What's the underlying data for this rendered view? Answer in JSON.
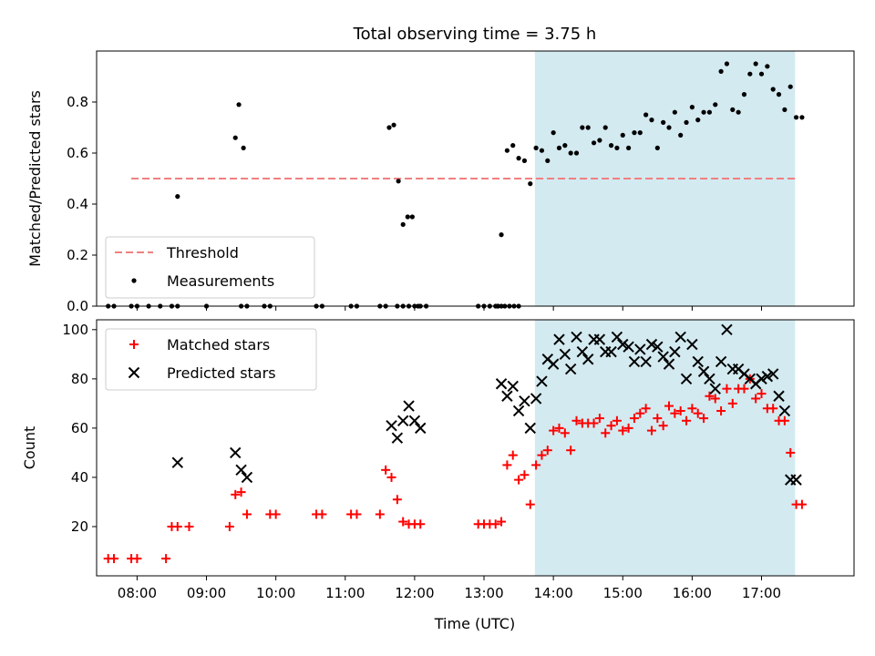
{
  "chart_data": {
    "title": "Total observing time = 3.75 h",
    "xlabel": "Time (UTC)",
    "x_ticks": [
      "08:00",
      "09:00",
      "10:00",
      "11:00",
      "12:00",
      "13:00",
      "14:00",
      "15:00",
      "16:00",
      "17:00"
    ],
    "xlim": [
      "07:25",
      "18:20"
    ],
    "shaded_interval": {
      "start": "13:44",
      "end": "17:29",
      "color": "#d3eaf0"
    },
    "panels": [
      {
        "id": "top",
        "ylabel": "Matched/Predicted stars",
        "ylim": [
          0.0,
          1.0
        ],
        "y_ticks": [
          "0.0",
          "0.2",
          "0.4",
          "0.6",
          "0.8"
        ],
        "grid": false,
        "legend": {
          "placement": "lower-left",
          "entries": [
            "Threshold",
            "Measurements"
          ]
        },
        "series": [
          {
            "name": "Threshold",
            "type": "line",
            "style": "dashed",
            "color": "#f08080",
            "x": [
              "07:55",
              "17:30"
            ],
            "y": [
              0.5,
              0.5
            ]
          },
          {
            "name": "Measurements",
            "type": "scatter",
            "marker": "dot",
            "color": "#000000",
            "x": [
              "07:35",
              "07:40",
              "07:55",
              "08:00",
              "08:10",
              "08:20",
              "08:30",
              "08:35",
              "09:00",
              "09:30",
              "09:35",
              "09:50",
              "09:55",
              "10:35",
              "10:40",
              "11:05",
              "11:10",
              "11:30",
              "11:35",
              "11:45",
              "11:50",
              "11:55",
              "12:00",
              "12:05",
              "12:10",
              "12:55",
              "13:00",
              "13:05",
              "13:10",
              "13:12",
              "13:15",
              "13:20",
              "13:25",
              "13:30",
              "13:35",
              "13:40",
              "13:45",
              "13:50",
              "13:55",
              "14:00",
              "14:05",
              "14:10",
              "14:15",
              "14:20",
              "14:25",
              "14:30",
              "14:35",
              "14:40",
              "14:45",
              "14:50",
              "14:55",
              "15:00",
              "15:05",
              "15:10",
              "15:15",
              "15:20",
              "15:25",
              "15:30",
              "15:35",
              "15:40",
              "15:45",
              "15:50",
              "15:55",
              "16:00",
              "16:05",
              "16:10",
              "16:15",
              "16:20",
              "16:25",
              "16:30",
              "16:35",
              "16:40",
              "16:45",
              "16:50",
              "16:55",
              "17:00",
              "17:05",
              "17:10",
              "17:15",
              "17:20",
              "17:25",
              "17:30",
              "17:35",
              "08:35",
              "09:25",
              "09:28",
              "09:32",
              "11:38",
              "11:42",
              "11:46",
              "11:50",
              "11:54",
              "11:58",
              "12:03",
              "13:12",
              "13:15",
              "13:18",
              "13:22",
              "13:26",
              "13:30"
            ],
            "y": [
              0,
              0,
              0,
              0,
              0,
              0,
              0,
              0,
              0,
              0,
              0,
              0,
              0,
              0,
              0,
              0,
              0,
              0,
              0,
              0,
              0,
              0,
              0,
              0,
              0,
              0,
              0,
              0,
              0,
              0,
              0.28,
              0.61,
              0.63,
              0.58,
              0.57,
              0.48,
              0.62,
              0.61,
              0.57,
              0.68,
              0.62,
              0.63,
              0.6,
              0.6,
              0.7,
              0.7,
              0.64,
              0.65,
              0.7,
              0.63,
              0.62,
              0.67,
              0.62,
              0.68,
              0.68,
              0.75,
              0.73,
              0.62,
              0.72,
              0.7,
              0.76,
              0.67,
              0.72,
              0.78,
              0.73,
              0.76,
              0.76,
              0.79,
              0.92,
              0.95,
              0.77,
              0.76,
              0.83,
              0.91,
              0.95,
              0.91,
              0.94,
              0.85,
              0.83,
              0.77,
              0.86,
              0.74,
              0.74,
              0.43,
              0.66,
              0.79,
              0.62,
              0.7,
              0.71,
              0.49,
              0.32,
              0.35,
              0.35,
              0.0,
              0.0,
              0.0,
              0.0,
              0.0,
              0.0,
              0.0
            ]
          }
        ]
      },
      {
        "id": "bottom",
        "ylabel": "Count",
        "ylim": [
          0,
          104
        ],
        "y_ticks": [
          "20",
          "40",
          "60",
          "80",
          "100"
        ],
        "grid": false,
        "legend": {
          "placement": "upper-left",
          "entries": [
            "Matched stars",
            "Predicted stars"
          ]
        },
        "series": [
          {
            "name": "Matched stars",
            "type": "scatter",
            "marker": "plus",
            "color": "#ff0000",
            "x": [
              "07:35",
              "07:40",
              "07:55",
              "08:00",
              "08:25",
              "08:30",
              "08:35",
              "08:45",
              "09:20",
              "09:25",
              "09:30",
              "09:35",
              "09:55",
              "10:00",
              "10:35",
              "10:40",
              "11:05",
              "11:10",
              "11:30",
              "11:35",
              "11:40",
              "11:45",
              "11:50",
              "11:55",
              "12:00",
              "12:05",
              "12:55",
              "13:00",
              "13:05",
              "13:10",
              "13:15",
              "13:20",
              "13:25",
              "13:30",
              "13:35",
              "13:40",
              "13:45",
              "13:50",
              "13:55",
              "14:00",
              "14:05",
              "14:10",
              "14:15",
              "14:20",
              "14:25",
              "14:30",
              "14:35",
              "14:40",
              "14:45",
              "14:50",
              "14:55",
              "15:00",
              "15:05",
              "15:10",
              "15:15",
              "15:20",
              "15:25",
              "15:30",
              "15:35",
              "15:40",
              "15:45",
              "15:50",
              "15:55",
              "16:00",
              "16:05",
              "16:10",
              "16:15",
              "16:20",
              "16:25",
              "16:30",
              "16:35",
              "16:40",
              "16:45",
              "16:50",
              "16:55",
              "17:00",
              "17:05",
              "17:10",
              "17:15",
              "17:20",
              "17:25",
              "17:30",
              "17:35"
            ],
            "y": [
              7,
              7,
              7,
              7,
              7,
              20,
              20,
              20,
              20,
              33,
              34,
              25,
              25,
              25,
              25,
              25,
              25,
              25,
              25,
              43,
              40,
              31,
              22,
              21,
              21,
              21,
              21,
              21,
              21,
              21,
              22,
              45,
              49,
              39,
              41,
              29,
              45,
              49,
              51,
              59,
              60,
              58,
              51,
              63,
              62,
              62,
              62,
              64,
              58,
              61,
              63,
              59,
              60,
              64,
              66,
              68,
              59,
              64,
              61,
              69,
              66,
              67,
              63,
              68,
              66,
              64,
              73,
              72,
              67,
              76,
              70,
              76,
              76,
              80,
              72,
              74,
              68,
              68,
              63,
              63,
              50,
              29,
              29
            ]
          },
          {
            "name": "Predicted stars",
            "type": "scatter",
            "marker": "x",
            "color": "#000000",
            "x": [
              "08:35",
              "09:25",
              "09:30",
              "09:35",
              "11:40",
              "11:45",
              "11:50",
              "11:55",
              "12:00",
              "12:05",
              "13:15",
              "13:20",
              "13:25",
              "13:30",
              "13:35",
              "13:40",
              "13:45",
              "13:50",
              "13:55",
              "14:00",
              "14:05",
              "14:10",
              "14:15",
              "14:20",
              "14:25",
              "14:30",
              "14:35",
              "14:40",
              "14:45",
              "14:50",
              "14:55",
              "15:00",
              "15:05",
              "15:10",
              "15:15",
              "15:20",
              "15:25",
              "15:30",
              "15:35",
              "15:40",
              "15:45",
              "15:50",
              "15:55",
              "16:00",
              "16:05",
              "16:10",
              "16:15",
              "16:20",
              "16:25",
              "16:30",
              "16:35",
              "16:40",
              "16:45",
              "16:50",
              "16:55",
              "17:00",
              "17:05",
              "17:10",
              "17:15",
              "17:20",
              "17:25",
              "17:30"
            ],
            "y": [
              46,
              50,
              43,
              40,
              61,
              56,
              63,
              69,
              63,
              60,
              78,
              73,
              77,
              67,
              71,
              60,
              72,
              79,
              88,
              86,
              96,
              90,
              84,
              97,
              91,
              88,
              96,
              96,
              91,
              91,
              97,
              94,
              93,
              87,
              92,
              87,
              94,
              93,
              89,
              86,
              91,
              97,
              80,
              94,
              87,
              83,
              80,
              76,
              87,
              100,
              84,
              84,
              82,
              80,
              78,
              80,
              81,
              82,
              73,
              67,
              39,
              39
            ]
          }
        ]
      }
    ]
  }
}
